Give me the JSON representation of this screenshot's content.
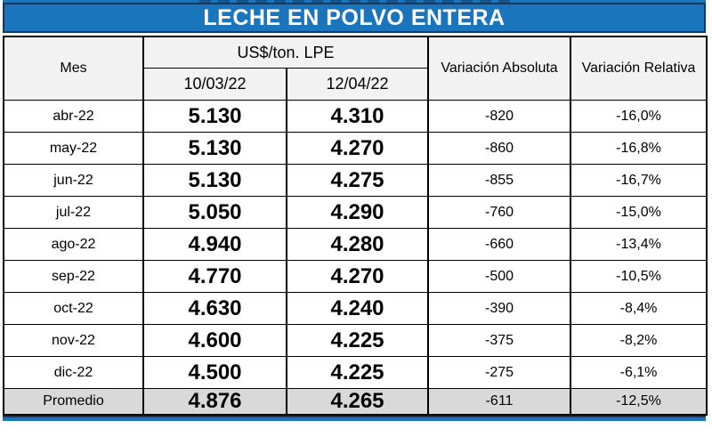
{
  "title": "LECHE EN POLVO ENTERA",
  "table": {
    "col_mes": "Mes",
    "group_header": "US$/ton. LPE",
    "subcols": [
      "10/03/22",
      "12/04/22"
    ],
    "col_var_abs": "Variación Absoluta",
    "col_var_rel": "Variación Relativa",
    "rows": [
      {
        "mes": "abr-22",
        "p1": "5.130",
        "p2": "4.310",
        "abs": "-820",
        "rel": "-16,0%"
      },
      {
        "mes": "may-22",
        "p1": "5.130",
        "p2": "4.270",
        "abs": "-860",
        "rel": "-16,8%"
      },
      {
        "mes": "jun-22",
        "p1": "5.130",
        "p2": "4.275",
        "abs": "-855",
        "rel": "-16,7%"
      },
      {
        "mes": "jul-22",
        "p1": "5.050",
        "p2": "4.290",
        "abs": "-760",
        "rel": "-15,0%"
      },
      {
        "mes": "ago-22",
        "p1": "4.940",
        "p2": "4.280",
        "abs": "-660",
        "rel": "-13,4%"
      },
      {
        "mes": "sep-22",
        "p1": "4.770",
        "p2": "4.270",
        "abs": "-500",
        "rel": "-10,5%"
      },
      {
        "mes": "oct-22",
        "p1": "4.630",
        "p2": "4.240",
        "abs": "-390",
        "rel": "-8,4%"
      },
      {
        "mes": "nov-22",
        "p1": "4.600",
        "p2": "4.225",
        "abs": "-375",
        "rel": "-8,2%"
      },
      {
        "mes": "dic-22",
        "p1": "4.500",
        "p2": "4.225",
        "abs": "-275",
        "rel": "-6,1%"
      }
    ],
    "summary": {
      "mes": "Promedio",
      "p1": "4.876",
      "p2": "4.265",
      "abs": "-611",
      "rel": "-12,5%"
    }
  },
  "colors": {
    "title_bar_blue": "#1b75bc",
    "title_bar_border_navy": "#17375d",
    "header_cell_bg": "#f2f2f2",
    "summary_row_bg": "#d9d9d9",
    "grid_border": "#000000",
    "title_text": "#ffffff"
  },
  "chart_data": {
    "type": "table",
    "title": "LECHE EN POLVO ENTERA",
    "columns": [
      "Mes",
      "US$/ton. LPE 10/03/22",
      "US$/ton. LPE 12/04/22",
      "Variación Absoluta",
      "Variación Relativa"
    ],
    "categories": [
      "abr-22",
      "may-22",
      "jun-22",
      "jul-22",
      "ago-22",
      "sep-22",
      "oct-22",
      "nov-22",
      "dic-22",
      "Promedio"
    ],
    "series": [
      {
        "name": "US$/ton. LPE 10/03/22",
        "values": [
          5130,
          5130,
          5130,
          5050,
          4940,
          4770,
          4630,
          4600,
          4500,
          4876
        ]
      },
      {
        "name": "US$/ton. LPE 12/04/22",
        "values": [
          4310,
          4270,
          4275,
          4290,
          4280,
          4270,
          4240,
          4225,
          4225,
          4265
        ]
      },
      {
        "name": "Variación Absoluta",
        "values": [
          -820,
          -860,
          -855,
          -760,
          -660,
          -500,
          -390,
          -375,
          -275,
          -611
        ]
      },
      {
        "name": "Variación Relativa (%)",
        "values": [
          -16.0,
          -16.8,
          -16.7,
          -15.0,
          -13.4,
          -10.5,
          -8.4,
          -8.2,
          -6.1,
          -12.5
        ]
      }
    ]
  }
}
